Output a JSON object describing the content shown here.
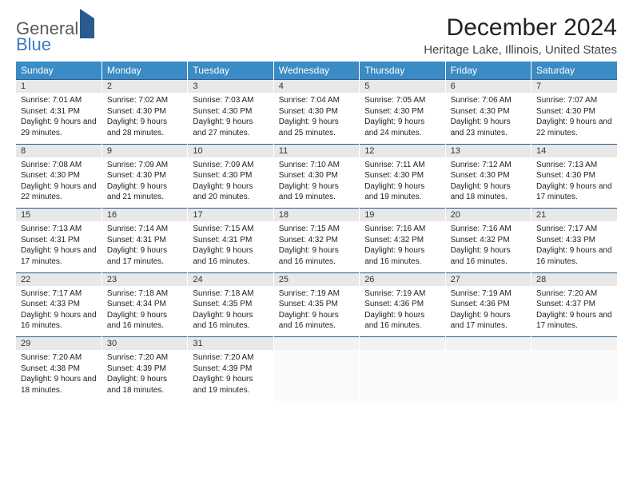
{
  "brand": {
    "general": "General",
    "blue": "Blue"
  },
  "title": "December 2024",
  "location": "Heritage Lake, Illinois, United States",
  "colors": {
    "header_bg": "#3b8bc4",
    "header_text": "#ffffff",
    "daynum_bg": "#e8e8e8",
    "border_accent": "#2a5a8f",
    "text": "#222222",
    "logo_gray": "#5a5a5a",
    "logo_blue": "#3b7bbf"
  },
  "day_headers": [
    "Sunday",
    "Monday",
    "Tuesday",
    "Wednesday",
    "Thursday",
    "Friday",
    "Saturday"
  ],
  "weeks": [
    {
      "nums": [
        "1",
        "2",
        "3",
        "4",
        "5",
        "6",
        "7"
      ],
      "cells": [
        {
          "sunrise": "Sunrise: 7:01 AM",
          "sunset": "Sunset: 4:31 PM",
          "daylight": "Daylight: 9 hours and 29 minutes."
        },
        {
          "sunrise": "Sunrise: 7:02 AM",
          "sunset": "Sunset: 4:30 PM",
          "daylight": "Daylight: 9 hours and 28 minutes."
        },
        {
          "sunrise": "Sunrise: 7:03 AM",
          "sunset": "Sunset: 4:30 PM",
          "daylight": "Daylight: 9 hours and 27 minutes."
        },
        {
          "sunrise": "Sunrise: 7:04 AM",
          "sunset": "Sunset: 4:30 PM",
          "daylight": "Daylight: 9 hours and 25 minutes."
        },
        {
          "sunrise": "Sunrise: 7:05 AM",
          "sunset": "Sunset: 4:30 PM",
          "daylight": "Daylight: 9 hours and 24 minutes."
        },
        {
          "sunrise": "Sunrise: 7:06 AM",
          "sunset": "Sunset: 4:30 PM",
          "daylight": "Daylight: 9 hours and 23 minutes."
        },
        {
          "sunrise": "Sunrise: 7:07 AM",
          "sunset": "Sunset: 4:30 PM",
          "daylight": "Daylight: 9 hours and 22 minutes."
        }
      ]
    },
    {
      "nums": [
        "8",
        "9",
        "10",
        "11",
        "12",
        "13",
        "14"
      ],
      "cells": [
        {
          "sunrise": "Sunrise: 7:08 AM",
          "sunset": "Sunset: 4:30 PM",
          "daylight": "Daylight: 9 hours and 22 minutes."
        },
        {
          "sunrise": "Sunrise: 7:09 AM",
          "sunset": "Sunset: 4:30 PM",
          "daylight": "Daylight: 9 hours and 21 minutes."
        },
        {
          "sunrise": "Sunrise: 7:09 AM",
          "sunset": "Sunset: 4:30 PM",
          "daylight": "Daylight: 9 hours and 20 minutes."
        },
        {
          "sunrise": "Sunrise: 7:10 AM",
          "sunset": "Sunset: 4:30 PM",
          "daylight": "Daylight: 9 hours and 19 minutes."
        },
        {
          "sunrise": "Sunrise: 7:11 AM",
          "sunset": "Sunset: 4:30 PM",
          "daylight": "Daylight: 9 hours and 19 minutes."
        },
        {
          "sunrise": "Sunrise: 7:12 AM",
          "sunset": "Sunset: 4:30 PM",
          "daylight": "Daylight: 9 hours and 18 minutes."
        },
        {
          "sunrise": "Sunrise: 7:13 AM",
          "sunset": "Sunset: 4:30 PM",
          "daylight": "Daylight: 9 hours and 17 minutes."
        }
      ]
    },
    {
      "nums": [
        "15",
        "16",
        "17",
        "18",
        "19",
        "20",
        "21"
      ],
      "cells": [
        {
          "sunrise": "Sunrise: 7:13 AM",
          "sunset": "Sunset: 4:31 PM",
          "daylight": "Daylight: 9 hours and 17 minutes."
        },
        {
          "sunrise": "Sunrise: 7:14 AM",
          "sunset": "Sunset: 4:31 PM",
          "daylight": "Daylight: 9 hours and 17 minutes."
        },
        {
          "sunrise": "Sunrise: 7:15 AM",
          "sunset": "Sunset: 4:31 PM",
          "daylight": "Daylight: 9 hours and 16 minutes."
        },
        {
          "sunrise": "Sunrise: 7:15 AM",
          "sunset": "Sunset: 4:32 PM",
          "daylight": "Daylight: 9 hours and 16 minutes."
        },
        {
          "sunrise": "Sunrise: 7:16 AM",
          "sunset": "Sunset: 4:32 PM",
          "daylight": "Daylight: 9 hours and 16 minutes."
        },
        {
          "sunrise": "Sunrise: 7:16 AM",
          "sunset": "Sunset: 4:32 PM",
          "daylight": "Daylight: 9 hours and 16 minutes."
        },
        {
          "sunrise": "Sunrise: 7:17 AM",
          "sunset": "Sunset: 4:33 PM",
          "daylight": "Daylight: 9 hours and 16 minutes."
        }
      ]
    },
    {
      "nums": [
        "22",
        "23",
        "24",
        "25",
        "26",
        "27",
        "28"
      ],
      "cells": [
        {
          "sunrise": "Sunrise: 7:17 AM",
          "sunset": "Sunset: 4:33 PM",
          "daylight": "Daylight: 9 hours and 16 minutes."
        },
        {
          "sunrise": "Sunrise: 7:18 AM",
          "sunset": "Sunset: 4:34 PM",
          "daylight": "Daylight: 9 hours and 16 minutes."
        },
        {
          "sunrise": "Sunrise: 7:18 AM",
          "sunset": "Sunset: 4:35 PM",
          "daylight": "Daylight: 9 hours and 16 minutes."
        },
        {
          "sunrise": "Sunrise: 7:19 AM",
          "sunset": "Sunset: 4:35 PM",
          "daylight": "Daylight: 9 hours and 16 minutes."
        },
        {
          "sunrise": "Sunrise: 7:19 AM",
          "sunset": "Sunset: 4:36 PM",
          "daylight": "Daylight: 9 hours and 16 minutes."
        },
        {
          "sunrise": "Sunrise: 7:19 AM",
          "sunset": "Sunset: 4:36 PM",
          "daylight": "Daylight: 9 hours and 17 minutes."
        },
        {
          "sunrise": "Sunrise: 7:20 AM",
          "sunset": "Sunset: 4:37 PM",
          "daylight": "Daylight: 9 hours and 17 minutes."
        }
      ]
    },
    {
      "nums": [
        "29",
        "30",
        "31",
        "",
        "",
        "",
        ""
      ],
      "cells": [
        {
          "sunrise": "Sunrise: 7:20 AM",
          "sunset": "Sunset: 4:38 PM",
          "daylight": "Daylight: 9 hours and 18 minutes."
        },
        {
          "sunrise": "Sunrise: 7:20 AM",
          "sunset": "Sunset: 4:39 PM",
          "daylight": "Daylight: 9 hours and 18 minutes."
        },
        {
          "sunrise": "Sunrise: 7:20 AM",
          "sunset": "Sunset: 4:39 PM",
          "daylight": "Daylight: 9 hours and 19 minutes."
        },
        {
          "empty": true
        },
        {
          "empty": true
        },
        {
          "empty": true
        },
        {
          "empty": true
        }
      ]
    }
  ]
}
